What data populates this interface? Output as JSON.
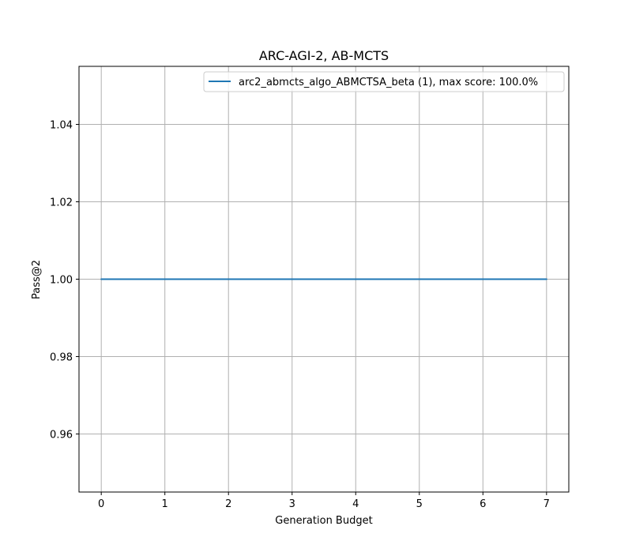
{
  "chart_data": {
    "type": "line",
    "title": "ARC-AGI-2, AB-MCTS",
    "xlabel": "Generation Budget",
    "ylabel": "Pass@2",
    "x_ticks": [
      "0",
      "1",
      "2",
      "3",
      "4",
      "5",
      "6",
      "7"
    ],
    "y_ticks": [
      "0.96",
      "0.98",
      "1.00",
      "1.02",
      "1.04"
    ],
    "xlim": [
      -0.35,
      7.35
    ],
    "ylim": [
      0.945,
      1.055
    ],
    "grid": true,
    "legend_position": "top-right",
    "series": [
      {
        "name": "arc2_abmcts_algo_ABMCTSA_beta (1), max score: 100.0%",
        "color": "#1f77b4",
        "x": [
          0,
          1,
          2,
          3,
          4,
          5,
          6,
          7
        ],
        "y": [
          1.0,
          1.0,
          1.0,
          1.0,
          1.0,
          1.0,
          1.0,
          1.0
        ]
      }
    ]
  }
}
